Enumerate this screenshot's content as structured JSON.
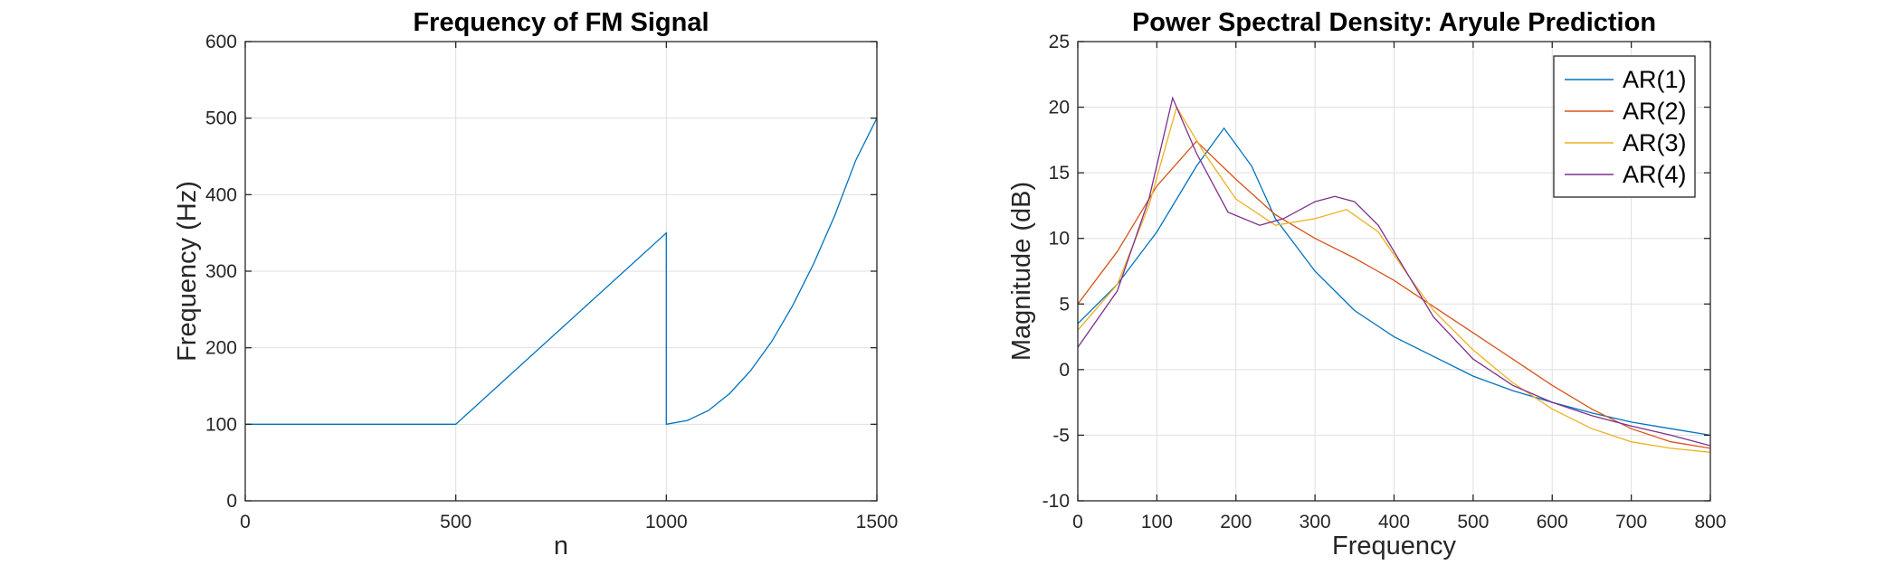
{
  "chart_data": [
    {
      "type": "line",
      "title": "Frequency of FM Signal",
      "xlabel": "n",
      "ylabel": "Frequency (Hz)",
      "xlim": [
        0,
        1500
      ],
      "ylim": [
        0,
        600
      ],
      "xticks": [
        0,
        500,
        1000,
        1500
      ],
      "yticks": [
        0,
        100,
        200,
        300,
        400,
        500,
        600
      ],
      "grid": true,
      "series": [
        {
          "color": "#0072BD",
          "x": [
            0,
            500,
            1000,
            1000,
            1050,
            1100,
            1150,
            1200,
            1250,
            1300,
            1350,
            1400,
            1450,
            1500
          ],
          "y": [
            100,
            100,
            350,
            100,
            105,
            118,
            140,
            170,
            208,
            255,
            310,
            373,
            445,
            500
          ]
        }
      ]
    },
    {
      "type": "line",
      "title": "Power Spectral Density: Aryule Prediction",
      "xlabel": "Frequency",
      "ylabel": "Magnitude (dB)",
      "xlim": [
        0,
        800
      ],
      "ylim": [
        -10,
        25
      ],
      "xticks": [
        0,
        100,
        200,
        300,
        400,
        500,
        600,
        700,
        800
      ],
      "yticks": [
        -10,
        -5,
        0,
        5,
        10,
        15,
        20,
        25
      ],
      "grid": true,
      "legend": "top-right",
      "series": [
        {
          "name": "AR(1)",
          "color": "#0072BD",
          "x": [
            0,
            50,
            100,
            150,
            185,
            220,
            250,
            300,
            350,
            400,
            450,
            500,
            550,
            600,
            650,
            700,
            750,
            800
          ],
          "y": [
            3.5,
            6.5,
            10.5,
            15.5,
            18.4,
            15.5,
            11.5,
            7.5,
            4.5,
            2.5,
            1.0,
            -0.5,
            -1.6,
            -2.5,
            -3.3,
            -4.0,
            -4.5,
            -5.0
          ]
        },
        {
          "name": "AR(2)",
          "color": "#D95319",
          "x": [
            0,
            50,
            100,
            150,
            200,
            250,
            300,
            350,
            400,
            450,
            500,
            550,
            600,
            650,
            700,
            750,
            800
          ],
          "y": [
            5.0,
            9.0,
            14.0,
            17.4,
            14.5,
            11.8,
            10.0,
            8.5,
            6.8,
            4.8,
            2.8,
            0.8,
            -1.2,
            -3.0,
            -4.5,
            -5.5,
            -6.0
          ]
        },
        {
          "name": "AR(3)",
          "color": "#EDB120",
          "x": [
            0,
            50,
            90,
            125,
            160,
            200,
            250,
            300,
            340,
            380,
            420,
            450,
            500,
            550,
            600,
            650,
            700,
            750,
            800
          ],
          "y": [
            3.0,
            6.5,
            12.5,
            20.0,
            16.5,
            13.0,
            11.0,
            11.5,
            12.2,
            10.5,
            7.0,
            4.5,
            1.5,
            -1.0,
            -3.0,
            -4.5,
            -5.5,
            -6.0,
            -6.3
          ]
        },
        {
          "name": "AR(4)",
          "color": "#7E2F8E",
          "x": [
            0,
            50,
            90,
            120,
            150,
            190,
            230,
            260,
            300,
            325,
            350,
            380,
            420,
            450,
            500,
            550,
            600,
            650,
            700,
            750,
            800
          ],
          "y": [
            1.7,
            6.0,
            13.0,
            20.7,
            16.5,
            12.0,
            11.0,
            11.5,
            12.8,
            13.2,
            12.8,
            11.0,
            7.0,
            4.0,
            0.8,
            -1.2,
            -2.5,
            -3.5,
            -4.3,
            -5.0,
            -5.8
          ]
        }
      ]
    }
  ]
}
